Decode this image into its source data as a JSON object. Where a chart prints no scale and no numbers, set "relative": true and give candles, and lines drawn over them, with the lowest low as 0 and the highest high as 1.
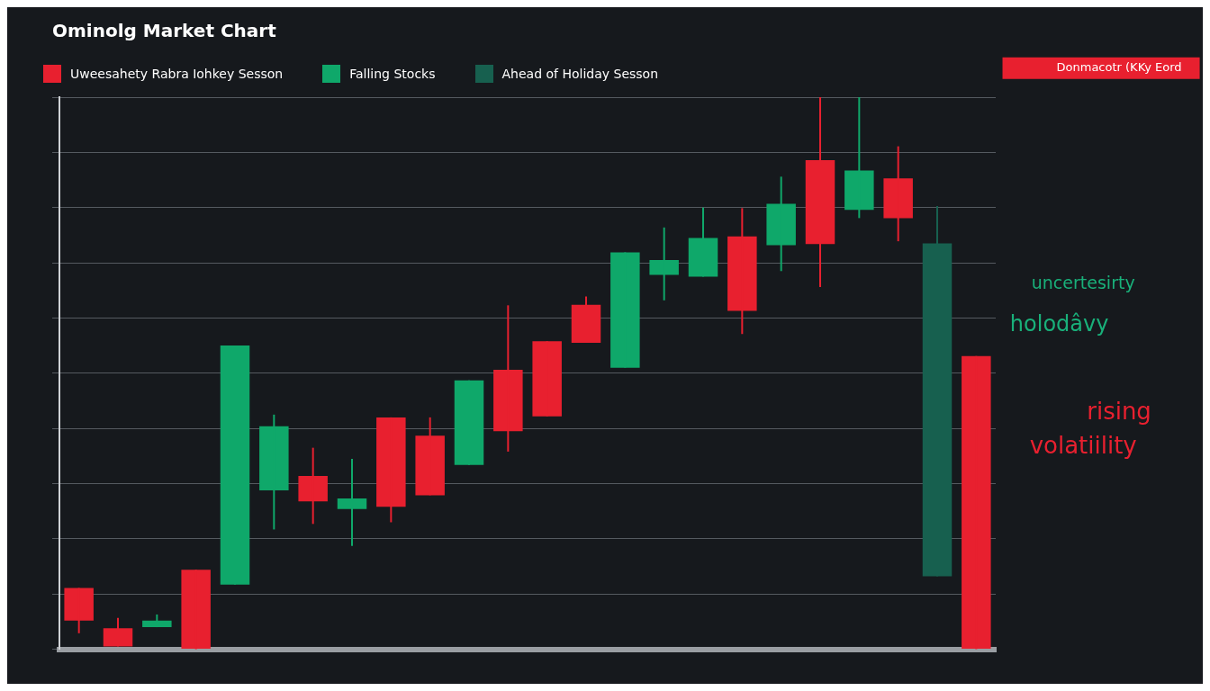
{
  "chart_data": {
    "type": "candlestick",
    "title": "Ominolg Market Chart",
    "relative": true,
    "grid": "y",
    "legend": false,
    "categories": [
      null,
      null,
      null,
      null,
      null,
      null,
      null,
      null,
      null,
      null,
      null,
      null,
      null,
      null,
      null,
      null,
      null,
      null,
      null,
      null,
      null,
      null,
      null,
      null
    ],
    "ohlc": [
      [
        0.111,
        0.111,
        0.029,
        0.052
      ],
      [
        0.038,
        0.057,
        0.005,
        0.005
      ],
      [
        0.04,
        0.063,
        0.04,
        0.052
      ],
      [
        0.144,
        0.144,
        0,
        0
      ],
      [
        0.117,
        0.55,
        0.117,
        0.55
      ],
      [
        0.288,
        0.425,
        0.217,
        0.404
      ],
      [
        0.314,
        0.365,
        0.227,
        0.268
      ],
      [
        0.254,
        0.345,
        0.187,
        0.273
      ],
      [
        0.42,
        0.42,
        0.23,
        0.258
      ],
      [
        0.387,
        0.42,
        0.279,
        0.279
      ],
      [
        0.334,
        0.487,
        0.334,
        0.487
      ],
      [
        0.506,
        0.623,
        0.358,
        0.395
      ],
      [
        0.558,
        0.558,
        0.422,
        0.422
      ],
      [
        0.624,
        0.639,
        0.555,
        0.555
      ],
      [
        0.51,
        0.719,
        0.51,
        0.719
      ],
      [
        0.678,
        0.764,
        0.632,
        0.705
      ],
      [
        0.675,
        0.8,
        0.675,
        0.745
      ],
      [
        0.748,
        0.799,
        0.571,
        0.613
      ],
      [
        0.732,
        0.856,
        0.685,
        0.807
      ],
      [
        0.886,
        1,
        0.656,
        0.734
      ],
      [
        0.796,
        1,
        0.781,
        0.867
      ],
      [
        0.853,
        0.911,
        0.739,
        0.781
      ],
      [
        0.132,
        0.803,
        0.132,
        0.735
      ],
      [
        0.531,
        0.531,
        0,
        0
      ]
    ],
    "colors": [
      "#e8202f",
      "#e8202f",
      "#0fa86a",
      "#e8202f",
      "#0fa86a",
      "#0fa86a",
      "#e8202f",
      "#0fa86a",
      "#e8202f",
      "#e8202f",
      "#0fa86a",
      "#e8202f",
      "#e8202f",
      "#e8202f",
      "#0fa86a",
      "#0fa86a",
      "#0fa86a",
      "#e8202f",
      "#0fa86a",
      "#e8202f",
      "#0fa86a",
      "#e8202f",
      "#17604f",
      "#e8202f"
    ],
    "annotations": [
      "Donmacotr (KKy Eord",
      "uncertesirty",
      "holodâvy",
      "rising",
      "volatiility",
      "Uweesahety Rabra Iohkey Sesson",
      "Falling Stocks",
      "Ahead of Holiday Sesson"
    ]
  }
}
